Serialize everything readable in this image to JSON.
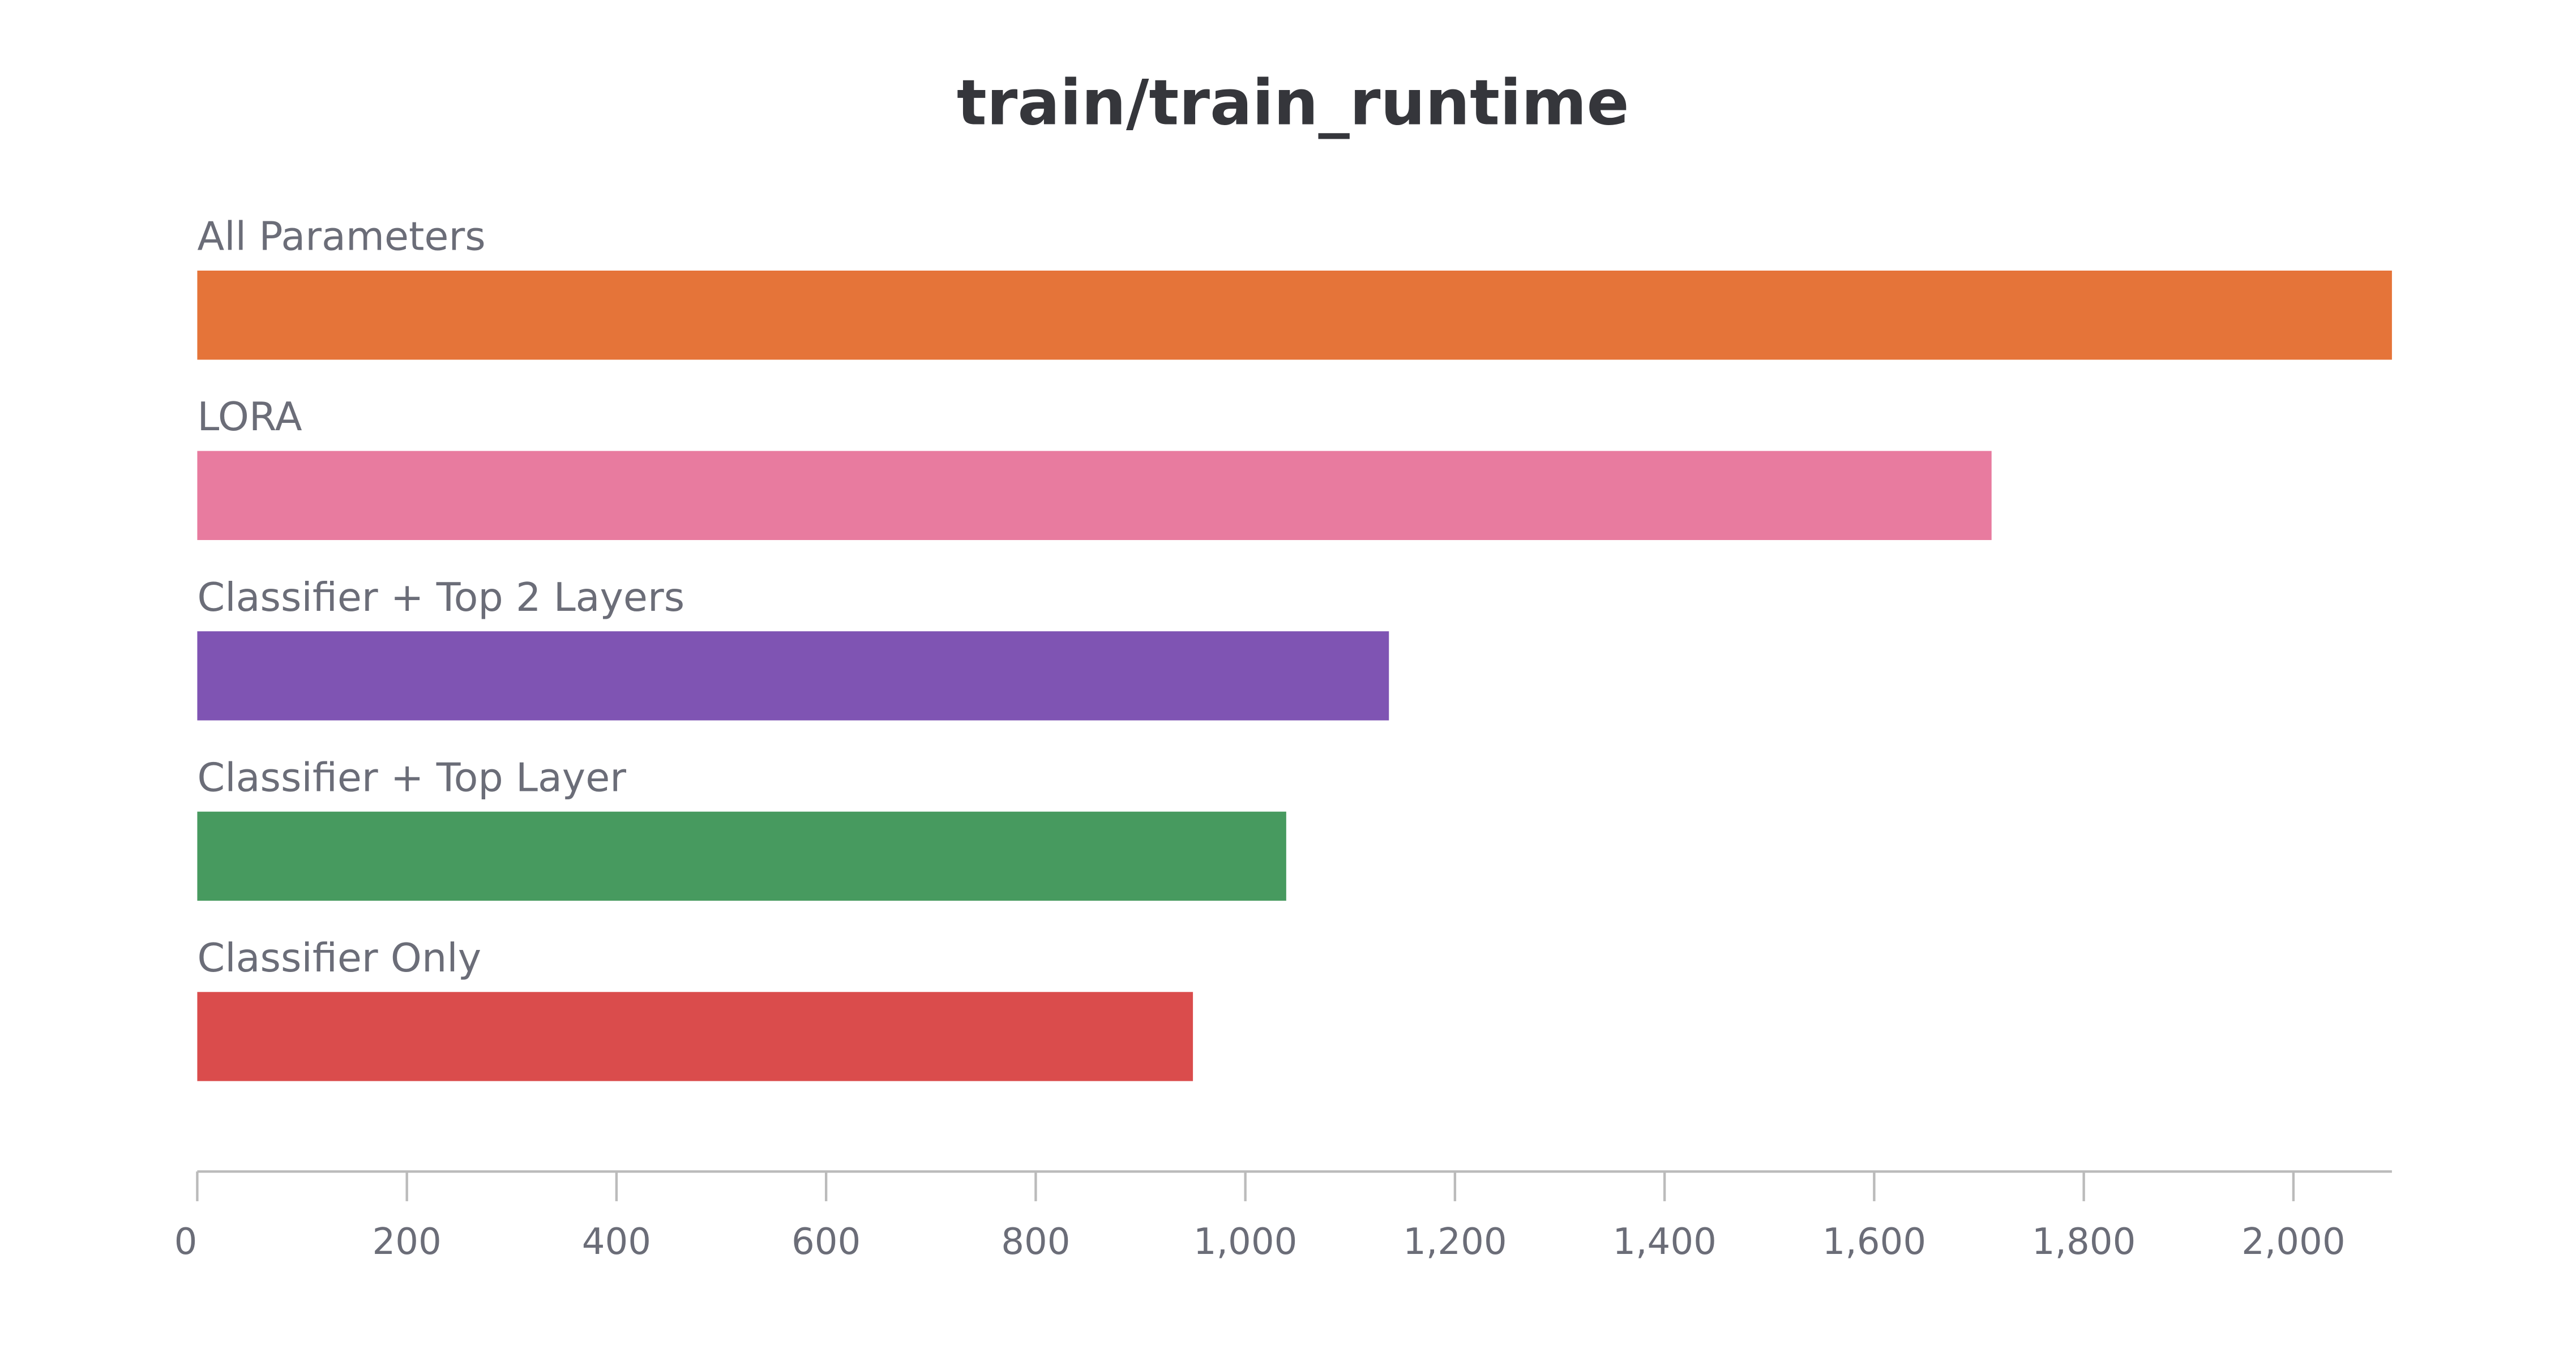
{
  "chart_data": {
    "type": "hbar",
    "title": "train/train_runtime",
    "categories": [
      "All Parameters",
      "LORA",
      "Classifier + Top 2 Layers",
      "Classifier + Top Layer",
      "Classifier Only"
    ],
    "values": [
      2094,
      1712,
      1137,
      1039,
      950
    ],
    "colors": [
      "#e57439",
      "#e87b9f",
      "#7f54b3",
      "#479a5f",
      "#da4c4c"
    ],
    "xlim": [
      0,
      2094
    ],
    "xticks": [
      0,
      200,
      400,
      600,
      800,
      {
        "value": 1000,
        "label": "1,000"
      },
      {
        "value": 1200,
        "label": "1,200"
      },
      {
        "value": 1400,
        "label": "1,400"
      },
      {
        "value": 1600,
        "label": "1,600"
      },
      {
        "value": 1800,
        "label": "1,800"
      },
      {
        "value": 2000,
        "label": "2,000"
      }
    ]
  }
}
